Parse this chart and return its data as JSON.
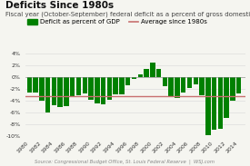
{
  "title": "Deficits Since 1980s",
  "subtitle": "Fiscal year (October-September) federal deficit as a percent of gross domestic product",
  "source": "Source: Congressional Budget Office, St. Louis Federal Reserve  |  WSJ.com",
  "years": [
    1980,
    1981,
    1982,
    1983,
    1984,
    1985,
    1986,
    1987,
    1988,
    1989,
    1990,
    1991,
    1992,
    1993,
    1994,
    1995,
    1996,
    1997,
    1998,
    1999,
    2000,
    2001,
    2002,
    2003,
    2004,
    2005,
    2006,
    2007,
    2008,
    2009,
    2010,
    2011,
    2012,
    2013,
    2014
  ],
  "values": [
    -2.7,
    -2.6,
    -4.0,
    -6.0,
    -4.8,
    -5.1,
    -5.0,
    -3.2,
    -3.1,
    -2.8,
    -3.9,
    -4.5,
    -4.7,
    -3.9,
    -2.9,
    -2.9,
    -1.4,
    -0.3,
    0.4,
    1.4,
    2.4,
    1.3,
    -1.5,
    -3.4,
    -3.5,
    -2.6,
    -1.9,
    -1.2,
    -3.1,
    -9.8,
    -8.9,
    -8.7,
    -7.0,
    -4.1,
    -2.8
  ],
  "average": -3.2,
  "bar_color": "#008000",
  "avg_color": "#c87070",
  "bg_color": "#f5f5f0",
  "grid_color": "#dddddd",
  "ylim": [
    -10,
    4
  ],
  "yticks": [
    -10,
    -8,
    -6,
    -4,
    -2,
    0,
    2,
    4
  ],
  "title_fontsize": 7.5,
  "subtitle_fontsize": 5.0,
  "legend_fontsize": 5.0,
  "tick_fontsize": 4.5,
  "source_fontsize": 3.8
}
